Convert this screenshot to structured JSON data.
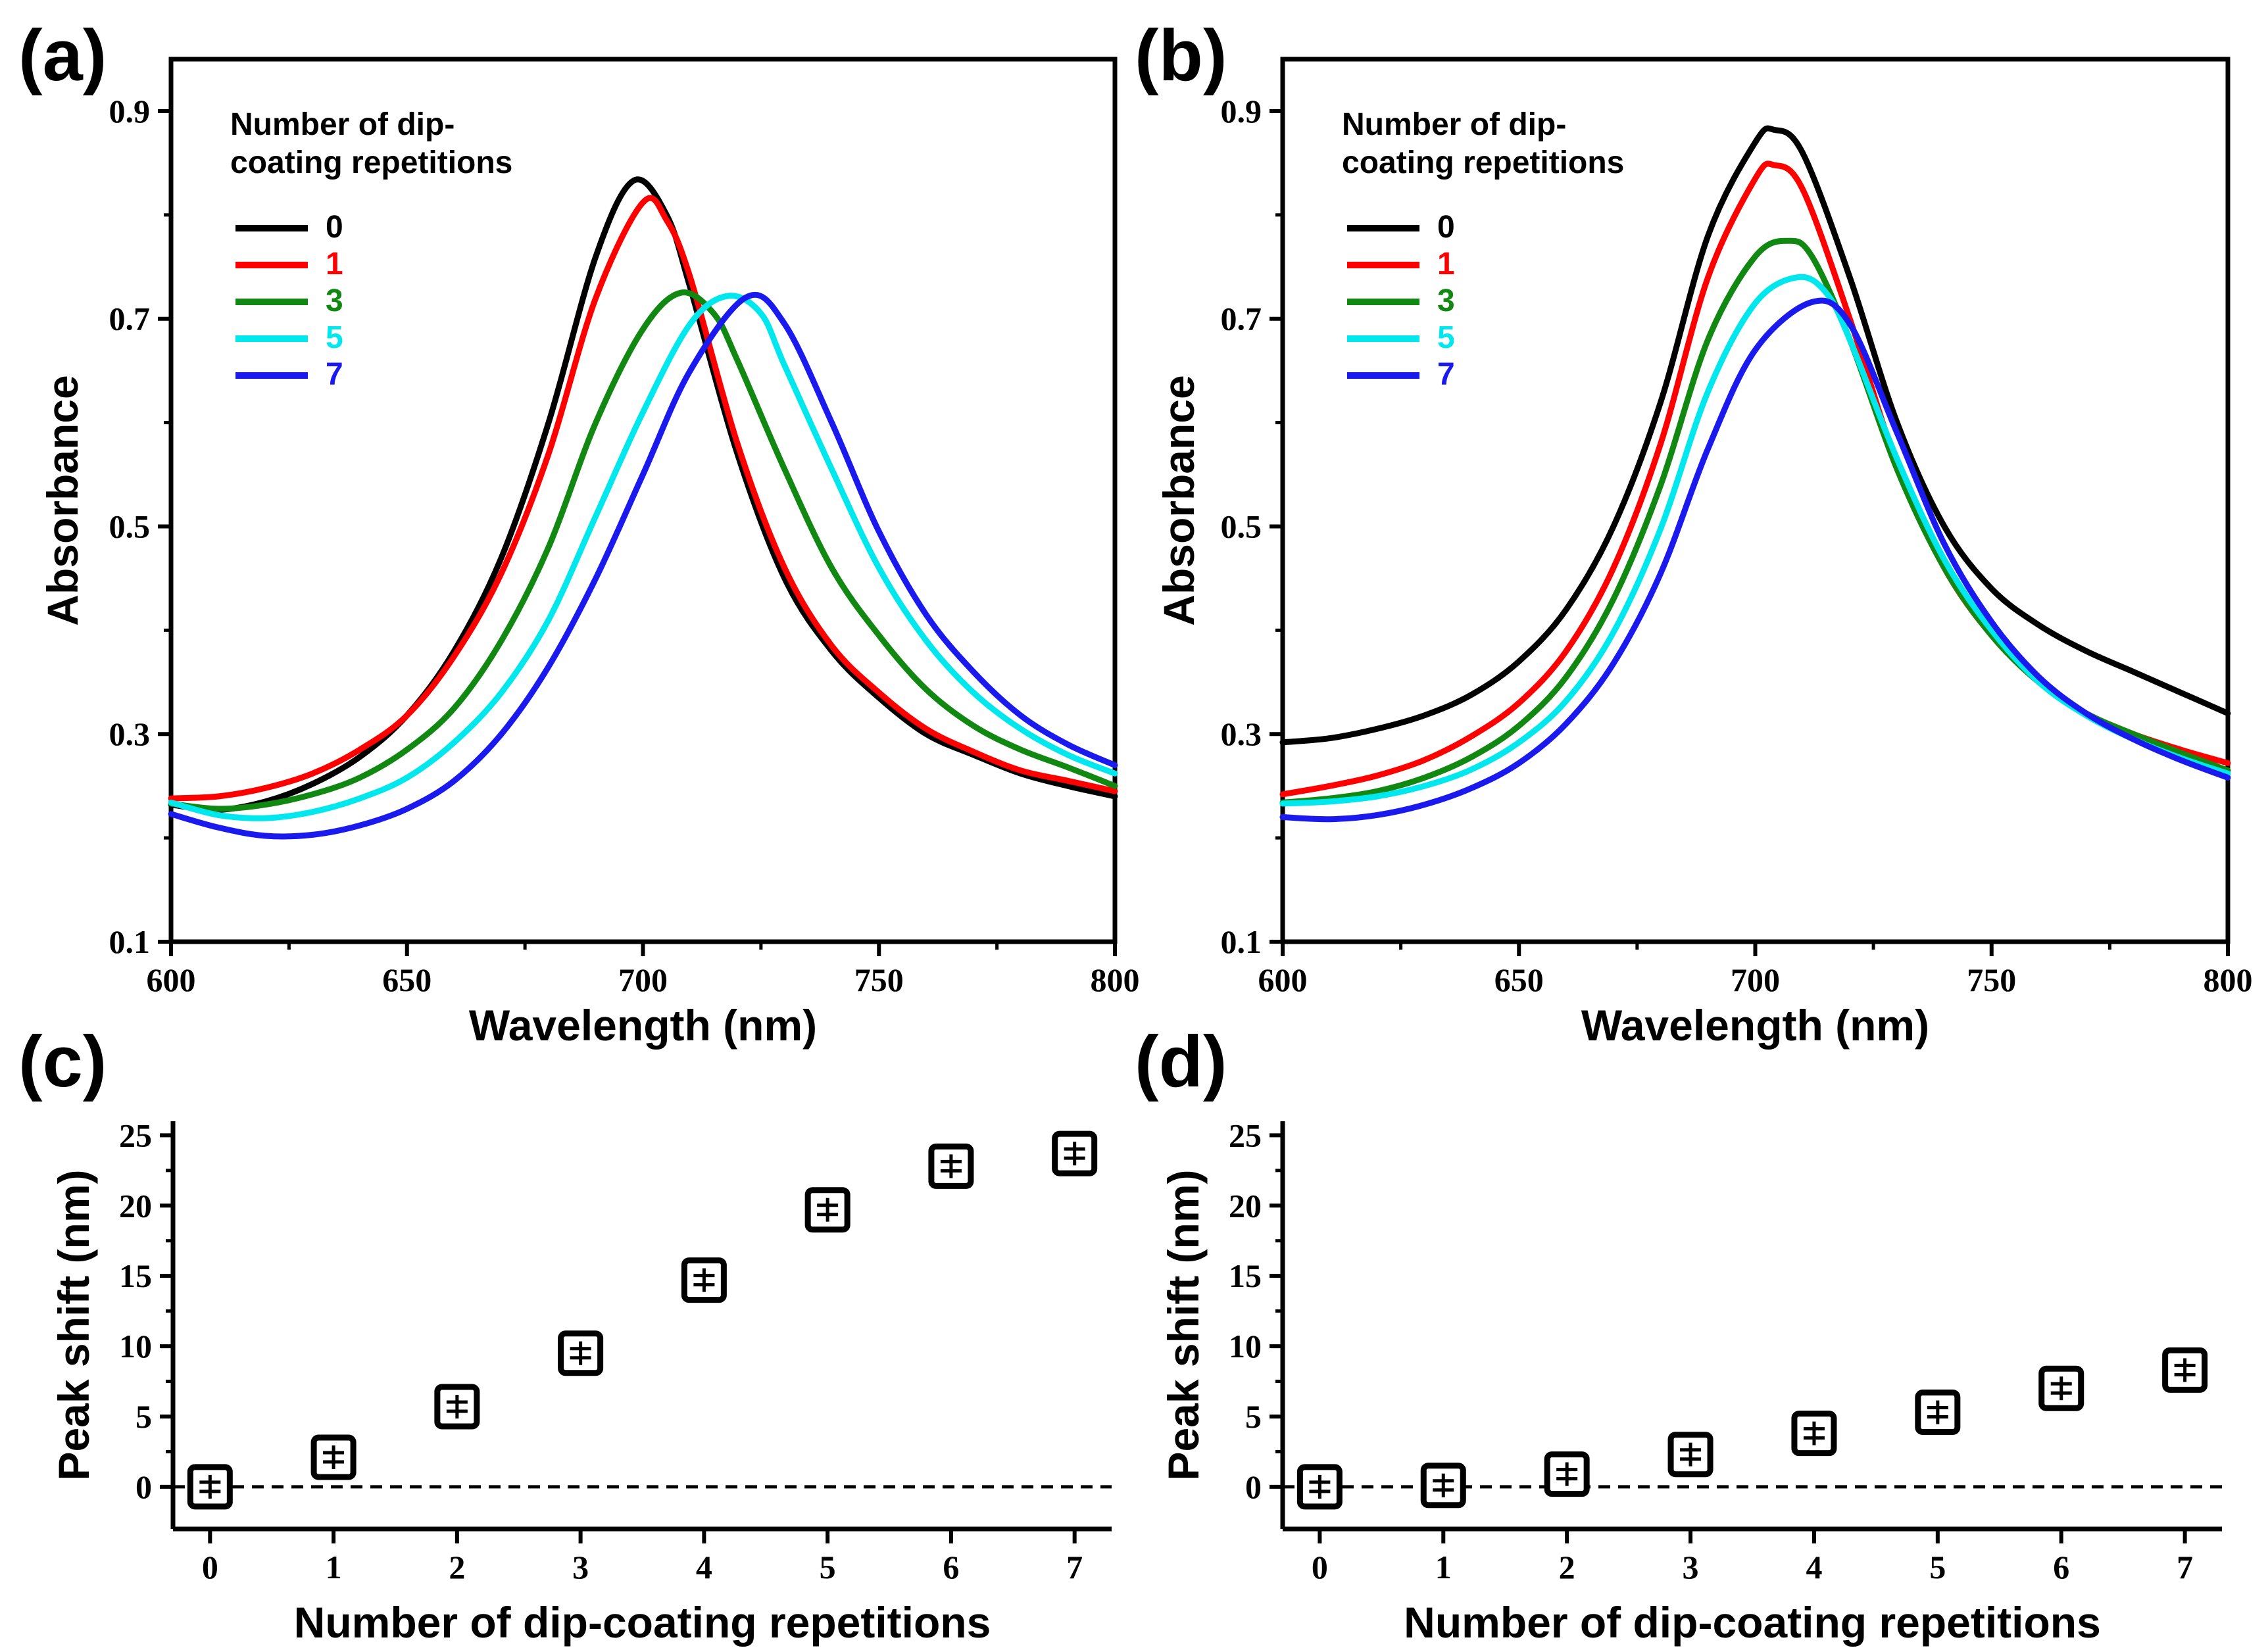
{
  "chart_data": [
    {
      "id": "a",
      "panel_label": "(a)",
      "type": "line",
      "xlabel": "Wavelength (nm)",
      "ylabel": "Absorbance",
      "xlim": [
        600,
        800
      ],
      "ylim": [
        0.1,
        0.95
      ],
      "xticks": [
        600,
        650,
        700,
        750,
        800
      ],
      "yticks": [
        0.1,
        0.3,
        0.5,
        0.7,
        0.9
      ],
      "legend_title": "Number of dip-coating repetitions",
      "legend_title_lines": [
        "Number of dip-",
        "coating repetitions"
      ],
      "legend_position": "top-left",
      "series": [
        {
          "name": "0",
          "color": "#000000",
          "x": [
            600,
            610,
            620,
            630,
            640,
            650,
            660,
            670,
            680,
            690,
            698,
            705,
            710,
            720,
            730,
            740,
            750,
            760,
            770,
            780,
            790,
            800
          ],
          "y": [
            0.232,
            0.227,
            0.235,
            0.252,
            0.278,
            0.318,
            0.38,
            0.47,
            0.6,
            0.76,
            0.833,
            0.8,
            0.73,
            0.57,
            0.45,
            0.38,
            0.335,
            0.3,
            0.28,
            0.262,
            0.25,
            0.24
          ]
        },
        {
          "name": "1",
          "color": "#ff0000",
          "x": [
            600,
            610,
            620,
            630,
            640,
            650,
            660,
            670,
            680,
            690,
            700,
            705,
            710,
            720,
            730,
            740,
            750,
            760,
            770,
            780,
            790,
            800
          ],
          "y": [
            0.238,
            0.24,
            0.248,
            0.262,
            0.285,
            0.318,
            0.375,
            0.455,
            0.57,
            0.72,
            0.812,
            0.795,
            0.74,
            0.58,
            0.46,
            0.385,
            0.34,
            0.305,
            0.283,
            0.265,
            0.255,
            0.245
          ]
        },
        {
          "name": "3",
          "color": "#118811",
          "x": [
            600,
            610,
            620,
            630,
            640,
            650,
            660,
            670,
            680,
            690,
            700,
            708,
            715,
            720,
            730,
            740,
            750,
            760,
            770,
            780,
            790,
            800
          ],
          "y": [
            0.233,
            0.228,
            0.232,
            0.242,
            0.258,
            0.285,
            0.325,
            0.39,
            0.48,
            0.6,
            0.69,
            0.725,
            0.705,
            0.66,
            0.555,
            0.46,
            0.395,
            0.343,
            0.308,
            0.285,
            0.268,
            0.25
          ]
        },
        {
          "name": "5",
          "color": "#00e8ee",
          "x": [
            600,
            610,
            620,
            630,
            640,
            650,
            660,
            670,
            680,
            690,
            700,
            710,
            718,
            725,
            730,
            740,
            750,
            760,
            770,
            780,
            790,
            800
          ],
          "y": [
            0.234,
            0.222,
            0.219,
            0.225,
            0.238,
            0.258,
            0.292,
            0.34,
            0.41,
            0.51,
            0.61,
            0.695,
            0.722,
            0.705,
            0.655,
            0.555,
            0.46,
            0.39,
            0.34,
            0.305,
            0.28,
            0.262
          ]
        },
        {
          "name": "7",
          "color": "#1a1aee",
          "x": [
            600,
            610,
            620,
            630,
            640,
            650,
            660,
            670,
            680,
            690,
            700,
            710,
            722,
            730,
            740,
            750,
            760,
            770,
            780,
            790,
            800
          ],
          "y": [
            0.223,
            0.21,
            0.202,
            0.203,
            0.212,
            0.228,
            0.255,
            0.3,
            0.365,
            0.45,
            0.55,
            0.65,
            0.721,
            0.695,
            0.6,
            0.495,
            0.415,
            0.36,
            0.318,
            0.29,
            0.27
          ]
        }
      ]
    },
    {
      "id": "b",
      "panel_label": "(b)",
      "type": "line",
      "xlabel": "Wavelength (nm)",
      "ylabel": "Absorbance",
      "xlim": [
        600,
        800
      ],
      "ylim": [
        0.1,
        0.95
      ],
      "xticks": [
        600,
        650,
        700,
        750,
        800
      ],
      "yticks": [
        0.1,
        0.3,
        0.5,
        0.7,
        0.9
      ],
      "legend_title": "Number of dip-coating repetitions",
      "legend_title_lines": [
        "Number of dip-",
        "coating repetitions"
      ],
      "legend_position": "top-left",
      "series": [
        {
          "name": "0",
          "color": "#000000",
          "x": [
            600,
            610,
            620,
            630,
            640,
            650,
            660,
            670,
            680,
            690,
            700,
            704,
            710,
            720,
            730,
            740,
            750,
            760,
            770,
            780,
            790,
            800
          ],
          "y": [
            0.292,
            0.296,
            0.305,
            0.318,
            0.338,
            0.37,
            0.42,
            0.5,
            0.62,
            0.78,
            0.87,
            0.882,
            0.86,
            0.74,
            0.6,
            0.5,
            0.44,
            0.405,
            0.38,
            0.36,
            0.34,
            0.32
          ]
        },
        {
          "name": "1",
          "color": "#ff0000",
          "x": [
            600,
            610,
            620,
            630,
            640,
            650,
            660,
            670,
            680,
            690,
            700,
            704,
            710,
            720,
            730,
            740,
            750,
            760,
            770,
            780,
            790,
            800
          ],
          "y": [
            0.242,
            0.25,
            0.26,
            0.275,
            0.298,
            0.33,
            0.38,
            0.46,
            0.58,
            0.74,
            0.835,
            0.848,
            0.825,
            0.7,
            0.56,
            0.46,
            0.395,
            0.35,
            0.32,
            0.3,
            0.285,
            0.272
          ]
        },
        {
          "name": "3",
          "color": "#118811",
          "x": [
            600,
            610,
            620,
            630,
            640,
            650,
            660,
            670,
            680,
            690,
            700,
            707,
            712,
            720,
            730,
            740,
            750,
            760,
            770,
            780,
            790,
            800
          ],
          "y": [
            0.234,
            0.238,
            0.245,
            0.258,
            0.278,
            0.308,
            0.355,
            0.43,
            0.54,
            0.68,
            0.76,
            0.775,
            0.76,
            0.68,
            0.555,
            0.46,
            0.395,
            0.35,
            0.32,
            0.3,
            0.282,
            0.265
          ]
        },
        {
          "name": "5",
          "color": "#00e8ee",
          "x": [
            600,
            610,
            620,
            630,
            640,
            650,
            660,
            670,
            680,
            690,
            700,
            709,
            715,
            720,
            730,
            740,
            750,
            760,
            770,
            780,
            790,
            800
          ],
          "y": [
            0.233,
            0.235,
            0.24,
            0.25,
            0.266,
            0.292,
            0.332,
            0.398,
            0.498,
            0.63,
            0.715,
            0.74,
            0.725,
            0.68,
            0.565,
            0.468,
            0.4,
            0.35,
            0.318,
            0.295,
            0.277,
            0.262
          ]
        },
        {
          "name": "7",
          "color": "#1a1aee",
          "x": [
            600,
            610,
            620,
            630,
            640,
            650,
            660,
            670,
            680,
            690,
            700,
            712,
            720,
            730,
            740,
            750,
            760,
            770,
            780,
            790,
            800
          ],
          "y": [
            0.22,
            0.218,
            0.222,
            0.232,
            0.248,
            0.272,
            0.31,
            0.368,
            0.455,
            0.575,
            0.67,
            0.716,
            0.695,
            0.59,
            0.483,
            0.408,
            0.355,
            0.32,
            0.295,
            0.275,
            0.258
          ]
        }
      ]
    },
    {
      "id": "c",
      "panel_label": "(c)",
      "type": "scatter",
      "xlabel": "Number of dip-coating repetitions",
      "ylabel": "Peak shift (nm)",
      "xlim": [
        -0.3,
        7.3
      ],
      "ylim": [
        -3,
        26
      ],
      "xticks": [
        0,
        1,
        2,
        3,
        4,
        5,
        6,
        7
      ],
      "yticks": [
        0,
        5,
        10,
        15,
        20,
        25
      ],
      "reference_line": 0,
      "x": [
        0,
        1,
        2,
        3,
        4,
        5,
        6,
        7
      ],
      "y": [
        0,
        2.1,
        5.7,
        9.5,
        14.7,
        19.7,
        22.8,
        23.7
      ]
    },
    {
      "id": "d",
      "panel_label": "(d)",
      "type": "scatter",
      "xlabel": "Number of dip-coating repetitions",
      "ylabel": "Peak shift (nm)",
      "xlim": [
        -0.3,
        7.3
      ],
      "ylim": [
        -3,
        26
      ],
      "xticks": [
        0,
        1,
        2,
        3,
        4,
        5,
        6,
        7
      ],
      "yticks": [
        0,
        5,
        10,
        15,
        20,
        25
      ],
      "reference_line": 0,
      "x": [
        0,
        1,
        2,
        3,
        4,
        5,
        6,
        7
      ],
      "y": [
        0,
        0.1,
        0.9,
        2.3,
        3.8,
        5.3,
        7.0,
        8.3
      ]
    }
  ]
}
